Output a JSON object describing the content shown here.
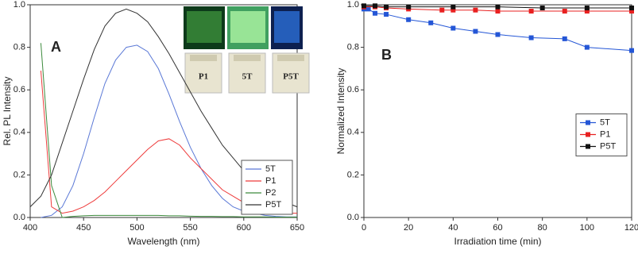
{
  "chart_data": [
    {
      "type": "line",
      "panel_label": "A",
      "xlabel": "Wavelength (nm)",
      "ylabel": "Rel. PL Intensity",
      "xlim": [
        400,
        650
      ],
      "xticks": [
        400,
        450,
        500,
        550,
        600,
        650
      ],
      "ylim": [
        0,
        1
      ],
      "yticks": [
        {
          "value": 0,
          "label": "0.0"
        },
        0.2,
        0.4,
        0.6,
        0.8,
        {
          "value": 1,
          "label": "1.0"
        }
      ],
      "legend": "lower right",
      "inset_labels": [
        "P1",
        "5T",
        "P5T"
      ],
      "x": [
        400,
        410,
        420,
        430,
        440,
        450,
        460,
        470,
        480,
        490,
        500,
        510,
        520,
        530,
        540,
        550,
        560,
        570,
        580,
        590,
        600,
        610,
        620,
        630,
        640,
        650
      ],
      "series": [
        {
          "name": "5T",
          "color": "#5a78d6",
          "values": [
            null,
            0.0,
            0.01,
            0.05,
            0.15,
            0.3,
            0.47,
            0.63,
            0.74,
            0.8,
            0.81,
            0.78,
            0.7,
            0.58,
            0.45,
            0.33,
            0.23,
            0.15,
            0.09,
            0.05,
            0.03,
            0.02,
            0.01,
            0.005,
            0.003,
            0.003
          ]
        },
        {
          "name": "P1",
          "color": "#ee3b3b",
          "values": [
            null,
            0.69,
            0.05,
            0.02,
            0.03,
            0.05,
            0.08,
            0.12,
            0.17,
            0.22,
            0.27,
            0.32,
            0.36,
            0.37,
            0.34,
            0.28,
            0.23,
            0.18,
            0.13,
            0.1,
            0.07,
            0.05,
            0.04,
            0.03,
            0.02,
            0.02
          ]
        },
        {
          "name": "P2",
          "color": "#3c8a3c",
          "values": [
            null,
            0.82,
            0.15,
            0.0,
            0.005,
            0.008,
            0.01,
            0.01,
            0.01,
            0.01,
            0.01,
            0.01,
            0.01,
            0.008,
            0.008,
            0.006,
            0.005,
            0.005,
            0.004,
            0.004,
            0.003,
            0.003,
            0.003,
            0.002,
            0.002,
            0.002
          ]
        },
        {
          "name": "P5T",
          "color": "#333333",
          "values": [
            0.05,
            0.1,
            0.2,
            0.35,
            0.5,
            0.65,
            0.79,
            0.9,
            0.96,
            0.98,
            0.96,
            0.92,
            0.85,
            0.77,
            0.68,
            0.59,
            0.5,
            0.42,
            0.34,
            0.28,
            0.22,
            0.17,
            0.13,
            0.09,
            0.07,
            0.05
          ]
        }
      ]
    },
    {
      "type": "line",
      "panel_label": "B",
      "xlabel": "Irradiation time (min)",
      "ylabel": "Normalized Intensity",
      "xlim": [
        0,
        120
      ],
      "xticks": [
        0,
        20,
        40,
        60,
        80,
        100,
        120
      ],
      "ylim": [
        0,
        1
      ],
      "yticks": [
        {
          "value": 0,
          "label": "0.0"
        },
        0.2,
        0.4,
        0.6,
        0.8,
        {
          "value": 1,
          "label": "1.0"
        }
      ],
      "legend": "center right",
      "markers": "square",
      "series": [
        {
          "name": "5T",
          "color": "#2456d6",
          "x": [
            0,
            2,
            5,
            10,
            20,
            30,
            40,
            50,
            60,
            75,
            90,
            100,
            120
          ],
          "values": [
            0.98,
            0.98,
            0.96,
            0.955,
            0.93,
            0.915,
            0.89,
            0.875,
            0.86,
            0.845,
            0.84,
            0.8,
            0.785
          ]
        },
        {
          "name": "P1",
          "color": "#e82020",
          "x": [
            0,
            5,
            10,
            20,
            35,
            40,
            50,
            60,
            75,
            90,
            100,
            120
          ],
          "values": [
            0.99,
            0.99,
            0.985,
            0.98,
            0.975,
            0.975,
            0.975,
            0.97,
            0.97,
            0.97,
            0.97,
            0.97
          ]
        },
        {
          "name": "P5T",
          "color": "#111111",
          "x": [
            0,
            5,
            10,
            20,
            40,
            60,
            80,
            100,
            120
          ],
          "values": [
            0.995,
            0.995,
            0.99,
            0.99,
            0.99,
            0.99,
            0.985,
            0.985,
            0.985
          ]
        }
      ]
    }
  ]
}
